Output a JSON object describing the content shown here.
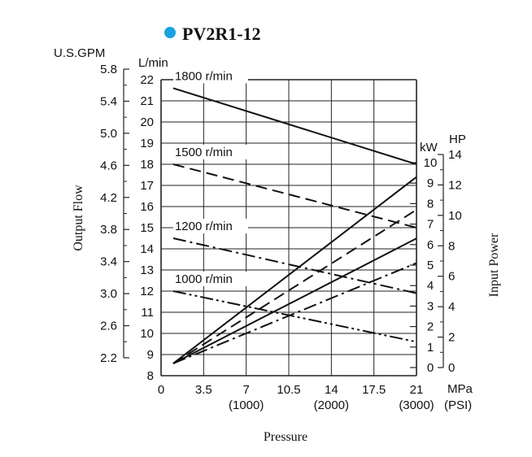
{
  "chart_data": {
    "type": "line",
    "title": "PV2R1-12",
    "title_marker_color": "#1aa3e0",
    "ylabel": "Output Flow",
    "xlabel": "Pressure",
    "y2label": "Input Power",
    "x_axis": {
      "unit": "MPa",
      "unit_secondary": "(PSI)",
      "range": [
        0,
        21
      ],
      "ticks": [
        {
          "value": 0,
          "label": "0",
          "psi": ""
        },
        {
          "value": 3.5,
          "label": "3.5",
          "psi": ""
        },
        {
          "value": 7,
          "label": "7",
          "psi": "(1000)"
        },
        {
          "value": 10.5,
          "label": "10.5",
          "psi": ""
        },
        {
          "value": 14,
          "label": "14",
          "psi": "(2000)"
        },
        {
          "value": 17.5,
          "label": "17.5",
          "psi": ""
        },
        {
          "value": 21,
          "label": "21",
          "psi": "(3000)"
        }
      ]
    },
    "y_left_lmin": {
      "unit": "L/min",
      "range": [
        8,
        22
      ],
      "ticks": [
        "8",
        "9",
        "10",
        "11",
        "12",
        "13",
        "14",
        "15",
        "16",
        "17",
        "18",
        "19",
        "20",
        "21",
        "22"
      ]
    },
    "y_left_gpm": {
      "unit": "U.S.GPM",
      "range": [
        2.2,
        5.8
      ],
      "ticks": [
        "2.2",
        "2.6",
        "3.0",
        "3.4",
        "3.8",
        "4.2",
        "4.6",
        "5.0",
        "5.4",
        "5.8"
      ]
    },
    "y_right_kw": {
      "unit": "kW",
      "range": [
        0,
        10
      ],
      "ticks": [
        "0",
        "1",
        "2",
        "3",
        "4",
        "5",
        "6",
        "7",
        "8",
        "9",
        "10"
      ]
    },
    "y_right_hp": {
      "unit": "HP",
      "range": [
        0,
        14
      ],
      "ticks": [
        "0",
        "2",
        "4",
        "6",
        "8",
        "10",
        "12",
        "14"
      ]
    },
    "flow_series": [
      {
        "name": "1800 r/min",
        "dash": "solid",
        "x": [
          1,
          21
        ],
        "y": [
          21.6,
          18.0
        ]
      },
      {
        "name": "1500 r/min",
        "dash": "dash",
        "x": [
          1,
          21
        ],
        "y": [
          18.0,
          15.0
        ]
      },
      {
        "name": "1200 r/min",
        "dash": "dashdot",
        "x": [
          1,
          21
        ],
        "y": [
          14.5,
          11.9
        ]
      },
      {
        "name": "1000 r/min",
        "dash": "dashdotdot",
        "x": [
          1,
          21
        ],
        "y": [
          12.0,
          9.6
        ]
      }
    ],
    "power_series": [
      {
        "dash": "solid",
        "x": [
          1,
          21
        ],
        "y": [
          0.2,
          9.3
        ]
      },
      {
        "dash": "dash",
        "x": [
          1,
          21
        ],
        "y": [
          0.2,
          7.7
        ]
      },
      {
        "dash": "solid",
        "x": [
          1,
          21
        ],
        "y": [
          0.2,
          6.3
        ]
      },
      {
        "dash": "dashdot",
        "x": [
          1,
          21
        ],
        "y": [
          0.2,
          5.1
        ]
      }
    ],
    "grid": true,
    "legend": "inline labels"
  }
}
